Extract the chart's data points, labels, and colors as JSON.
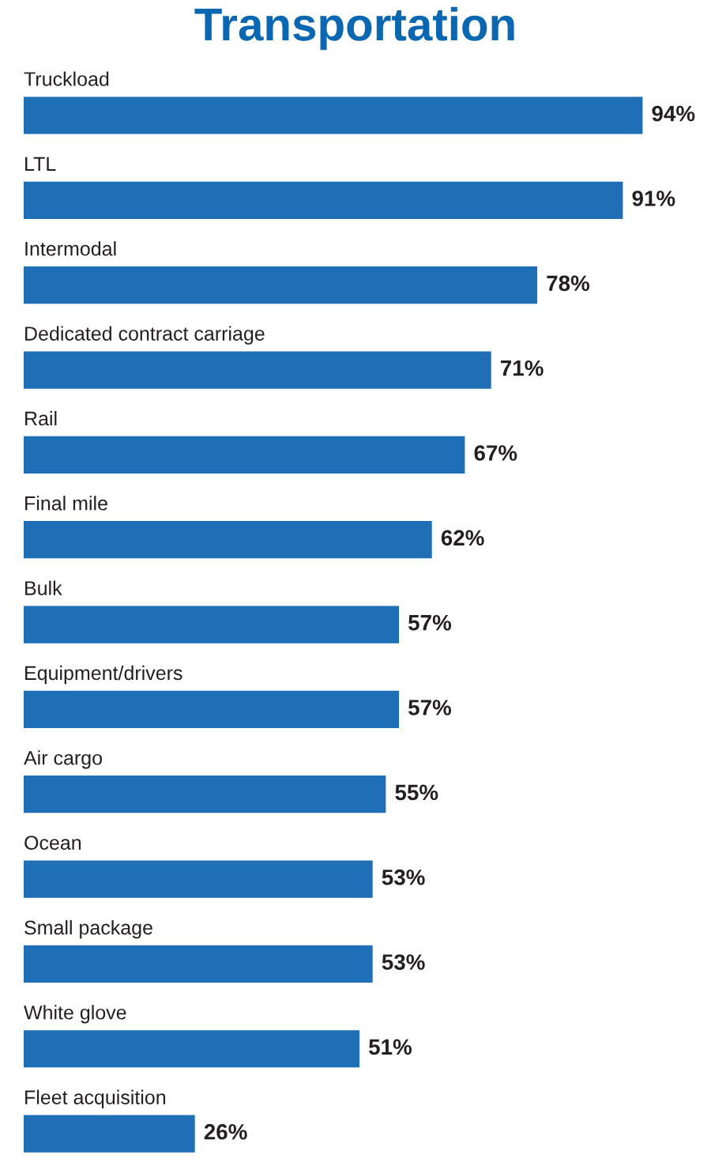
{
  "chart_data": {
    "type": "bar",
    "orientation": "horizontal",
    "title": "Transportation",
    "categories": [
      "Truckload",
      "LTL",
      "Intermodal",
      "Dedicated contract carriage",
      "Rail",
      "Final mile",
      "Bulk",
      "Equipment/drivers",
      "Air cargo",
      "Ocean",
      "Small package",
      "White glove",
      "Fleet acquisition"
    ],
    "values": [
      94,
      91,
      78,
      71,
      67,
      62,
      57,
      57,
      55,
      53,
      53,
      51,
      26
    ],
    "value_labels": [
      "94%",
      "91%",
      "78%",
      "71%",
      "67%",
      "62%",
      "57%",
      "57%",
      "55%",
      "53%",
      "53%",
      "51%",
      "26%"
    ],
    "color": "#1f6fb6"
  }
}
